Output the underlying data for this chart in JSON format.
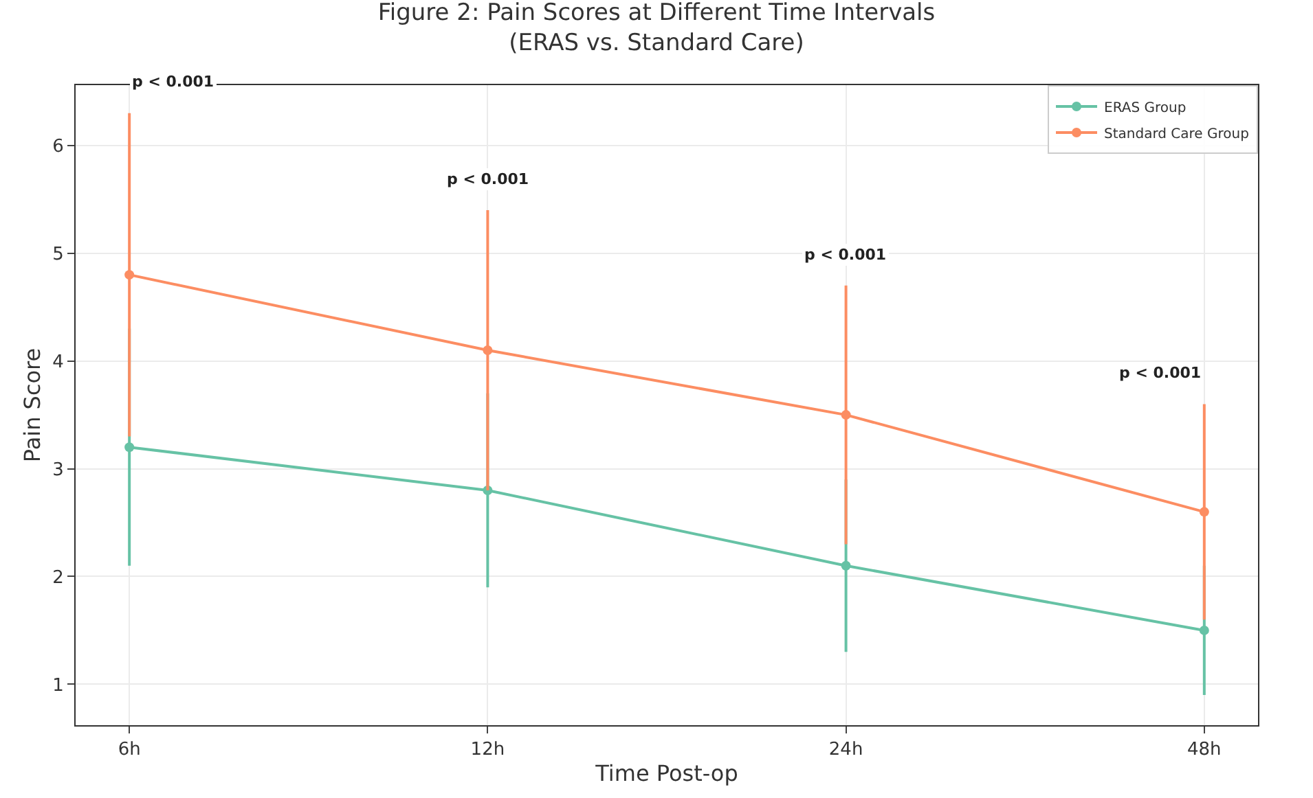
{
  "chart_data": {
    "type": "line",
    "title": "Figure 2: Pain Scores at Different Time Intervals\n(ERAS vs. Standard Care)",
    "xlabel": "Time Post-op",
    "ylabel": "Pain Score",
    "categories": [
      "6h",
      "12h",
      "24h",
      "48h"
    ],
    "series": [
      {
        "name": "ERAS Group",
        "color": "#66c2a5",
        "values": [
          3.2,
          2.8,
          2.1,
          1.5
        ],
        "errors": [
          1.1,
          0.9,
          0.8,
          0.6
        ]
      },
      {
        "name": "Standard Care Group",
        "color": "#fc8d62",
        "values": [
          4.8,
          4.1,
          3.5,
          2.6
        ],
        "errors": [
          1.5,
          1.3,
          1.2,
          1.0
        ]
      }
    ],
    "annotations": [
      "p < 0.001",
      "p < 0.001",
      "p < 0.001",
      "p < 0.001"
    ],
    "ylim": [
      0.62,
      6.56
    ],
    "yticks": [
      1,
      2,
      3,
      4,
      5,
      6
    ],
    "grid": true,
    "legend": "top right",
    "marker": "circle",
    "line_style": "solid"
  }
}
